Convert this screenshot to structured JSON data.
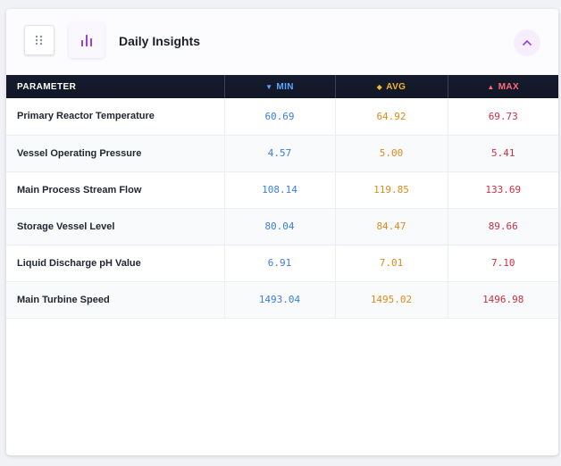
{
  "header": {
    "title": "Daily Insights",
    "icons": {
      "drag": "drag-handle-icon",
      "chart": "bar-chart-icon",
      "collapse": "chevron-up-icon"
    }
  },
  "table": {
    "columns": {
      "parameter": "PARAMETER",
      "min": "MIN",
      "avg": "AVG",
      "max": "MAX"
    },
    "rows": [
      {
        "name": "Primary Reactor Temperature",
        "min": "60.69",
        "avg": "64.92",
        "max": "69.73"
      },
      {
        "name": "Vessel Operating Pressure",
        "min": "4.57",
        "avg": "5.00",
        "max": "5.41"
      },
      {
        "name": "Main Process Stream Flow",
        "min": "108.14",
        "avg": "119.85",
        "max": "133.69"
      },
      {
        "name": "Storage Vessel Level",
        "min": "80.04",
        "avg": "84.47",
        "max": "89.66"
      },
      {
        "name": "Liquid Discharge pH Value",
        "min": "6.91",
        "avg": "7.01",
        "max": "7.10"
      },
      {
        "name": "Main Turbine Speed",
        "min": "1493.04",
        "avg": "1495.02",
        "max": "1496.98"
      }
    ]
  },
  "colors": {
    "header_bg": "#151c2e",
    "min": "#3a7ee2",
    "avg": "#de8a1a",
    "max": "#cf2f43",
    "accent": "#9b3fd9"
  }
}
